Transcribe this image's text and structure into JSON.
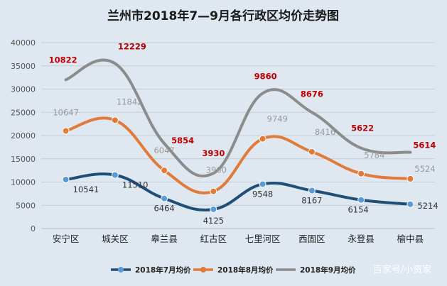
{
  "chart_data": {
    "type": "line",
    "title": "兰州市2018年7—9月各行政区均价走势图",
    "categories": [
      "安宁区",
      "城关区",
      "皋兰县",
      "红古区",
      "七里河区",
      "西固区",
      "永登县",
      "榆中县"
    ],
    "y_ticks": [
      "0",
      "5000",
      "10000",
      "15000",
      "20000",
      "25000",
      "30000",
      "35000",
      "40000"
    ],
    "ylim": [
      0,
      40000
    ],
    "grid": true,
    "legend_position": "bottom",
    "series": [
      {
        "name": "2018年7月均价",
        "color": "#1f4e79",
        "values": [
          10541,
          11510,
          6464,
          4125,
          9548,
          8167,
          6154,
          5214
        ],
        "labels": [
          "10541",
          "11510",
          "6464",
          "4125",
          "9548",
          "8167",
          "6154",
          "5214"
        ]
      },
      {
        "name": "2018年8月均价",
        "color": "#e07b39",
        "values": [
          21000,
          23300,
          12500,
          8000,
          19300,
          16500,
          11800,
          10700
        ],
        "labels": [
          "10647",
          "11842",
          "6047",
          "3960",
          "9749",
          "8416",
          "5784",
          "5524"
        ]
      },
      {
        "name": "2018年9月均价",
        "color": "#8c8c8c",
        "values": [
          32000,
          35500,
          18300,
          11900,
          29100,
          25000,
          17300,
          16400
        ],
        "labels": [
          "10822",
          "12229",
          "5854",
          "3930",
          "9860",
          "8676",
          "5622",
          "5614"
        ]
      }
    ]
  },
  "watermark": "百家号/小资家"
}
